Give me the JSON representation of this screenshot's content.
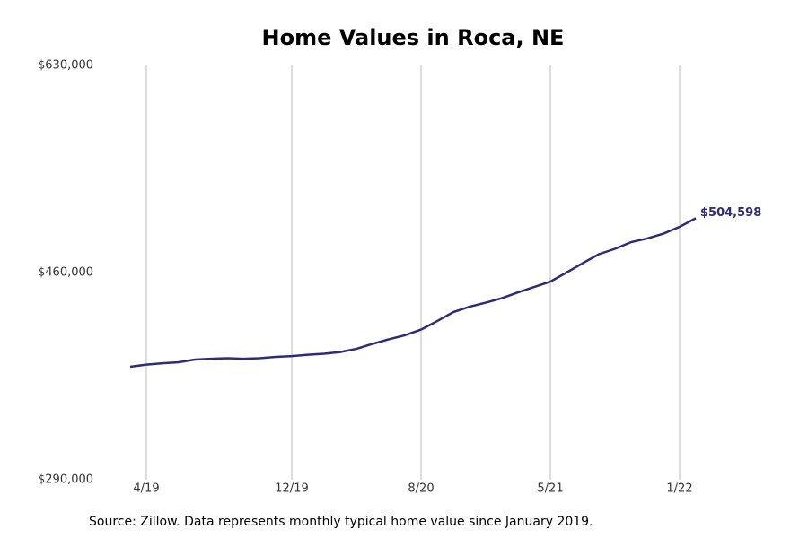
{
  "chart_data": {
    "type": "line",
    "title": "Home Values in Roca, NE",
    "categories": [
      null,
      "4/19",
      null,
      null,
      null,
      null,
      null,
      null,
      null,
      null,
      "12/19",
      null,
      null,
      null,
      null,
      null,
      null,
      null,
      "8/20",
      null,
      null,
      null,
      null,
      null,
      null,
      null,
      "5/21",
      null,
      null,
      null,
      null,
      null,
      null,
      null,
      "1/22",
      null
    ],
    "series": [
      {
        "color": "#2e2b78",
        "values": [
          382700,
          384500,
          385600,
          386400,
          388600,
          389300,
          389700,
          389300,
          389700,
          390800,
          391500,
          392600,
          393400,
          394800,
          397400,
          401500,
          405200,
          408500,
          413200,
          420200,
          427600,
          432000,
          435300,
          439000,
          443800,
          448200,
          452600,
          460000,
          467700,
          475100,
          479500,
          485000,
          488000,
          492000,
          497500,
          504598
        ],
        "value_labels": [
          null,
          null,
          null,
          null,
          null,
          null,
          null,
          null,
          null,
          null,
          null,
          null,
          null,
          null,
          null,
          null,
          null,
          null,
          null,
          null,
          null,
          null,
          null,
          null,
          null,
          null,
          null,
          null,
          null,
          null,
          null,
          null,
          null,
          null,
          null,
          "$504,598"
        ]
      }
    ],
    "ylim": [
      290000,
      630000
    ],
    "yticks": [
      {
        "value": 290000,
        "label": "$290,000"
      },
      {
        "value": 460000,
        "label": "$460,000"
      },
      {
        "value": 630000,
        "label": "$630,000"
      }
    ],
    "grid": "x",
    "source": "Source: Zillow. Data represents monthly typical home value since January 2019."
  }
}
